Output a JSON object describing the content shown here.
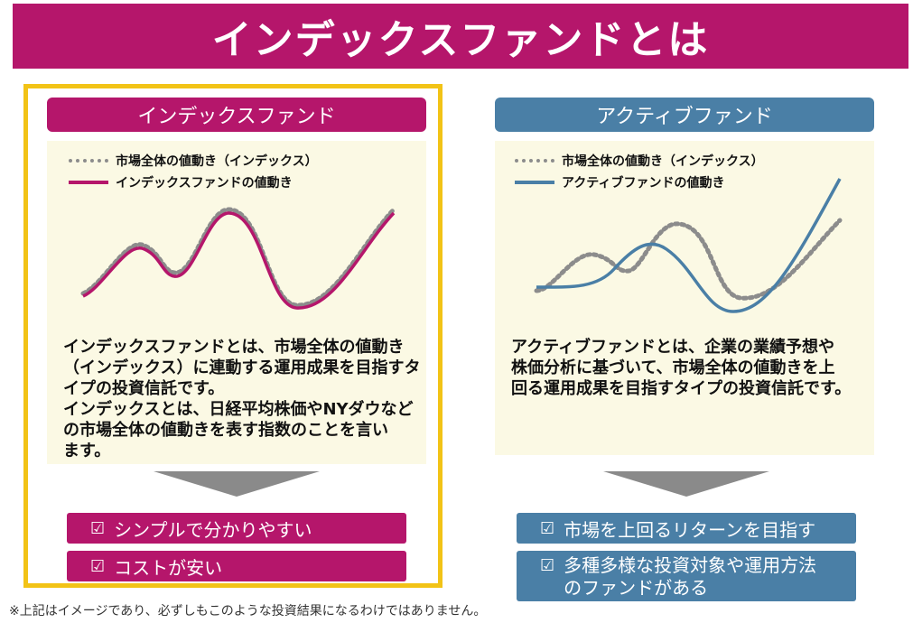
{
  "title": "インデックスファンドとは",
  "index_panel": {
    "header": "インデックスファンド",
    "legend": {
      "market": "市場全体の値動き（インデックス）",
      "fund": "インデックスファンドの値動き"
    },
    "description": [
      "インデックスファンドとは、市場全体の値動き",
      "（インデックス）に連動する運用成果を目指すタ",
      "イプの投資信託です。",
      "インデックスとは、日経平均株価やNYダウなど",
      "の市場全体の値動きを表す指数のことを言い",
      "ます。"
    ],
    "benefits": [
      "シンプルで分かりやすい",
      "コストが安い"
    ]
  },
  "active_panel": {
    "header": "アクティブファンド",
    "legend": {
      "market": "市場全体の値動き（インデックス）",
      "fund": "アクティブファンドの値動き"
    },
    "description": [
      "アクティブファンドとは、企業の業績予想や",
      "株価分析に基づいて、市場全体の値動きを上",
      "回る運用成果を目指すタイプの投資信託です。"
    ],
    "benefits": [
      "市場を上回るリターンを目指す",
      "多種多様な投資対象や運用方法",
      "のファンドがある"
    ]
  },
  "check_icon": "☑",
  "footnote": "※上記はイメージであり、必ずしもこのような投資結果になるわけではありません。",
  "colors": {
    "index_accent": "#b5166b",
    "active_accent": "#4a7fa6",
    "market_line": "#8c8c8c",
    "highlight_frame": "#f2c316",
    "panel_bg": "#fbf9e4"
  }
}
